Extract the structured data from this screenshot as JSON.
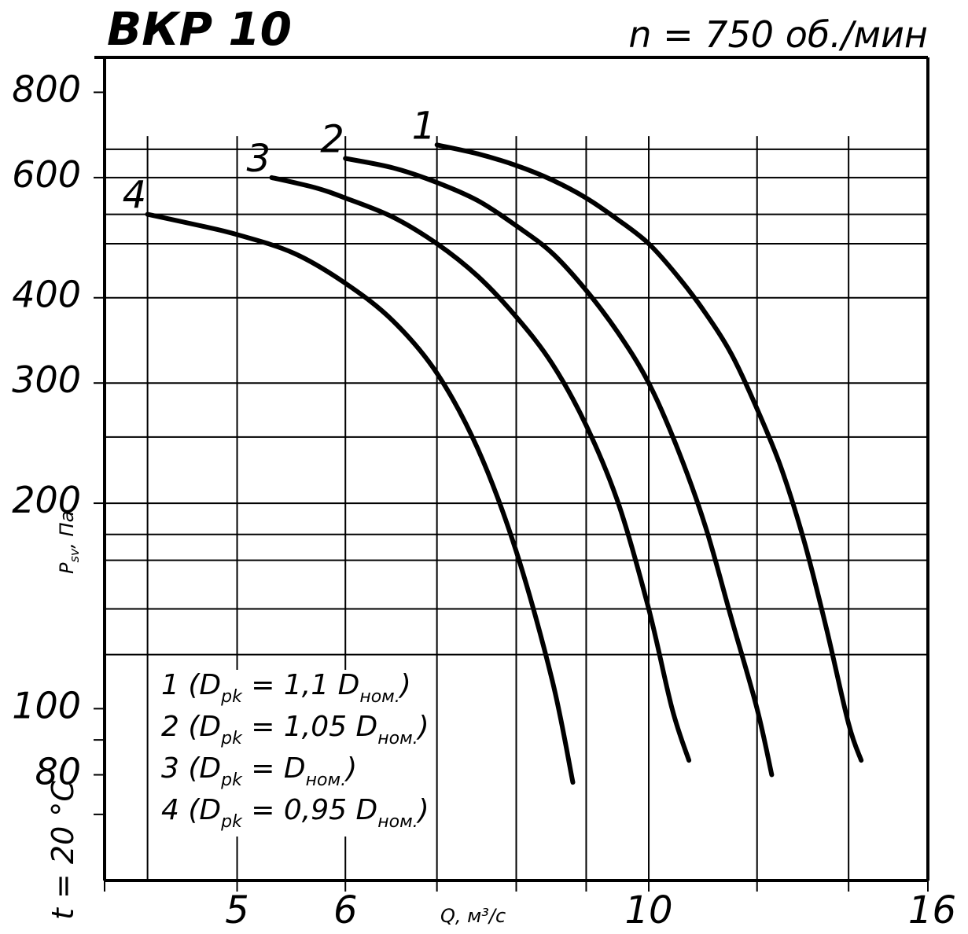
{
  "chart_data": {
    "type": "line",
    "title": "ВКР 10",
    "subtitle": "n = 750 об./мин",
    "xlabel": "Q, м³/с",
    "ylabel": "P_sv, Па",
    "condition": "t = 20 °C",
    "x_scale": "log",
    "y_scale": "log",
    "xlim": [
      4,
      16
    ],
    "ylim": [
      56,
      900
    ],
    "x_ticks": [
      4,
      5,
      6,
      7,
      8,
      9,
      10,
      12,
      14,
      16
    ],
    "x_tick_labels": [
      {
        "value": 5,
        "label": "5"
      },
      {
        "value": 6,
        "label": "6"
      },
      {
        "value": 10,
        "label": "10"
      },
      {
        "value": 16,
        "label": "16"
      }
    ],
    "y_tick_labels": [
      {
        "value": 800,
        "label": "800"
      },
      {
        "value": 600,
        "label": "600"
      },
      {
        "value": 400,
        "label": "400"
      },
      {
        "value": 300,
        "label": "300"
      },
      {
        "value": 200,
        "label": "200"
      },
      {
        "value": 100,
        "label": "100"
      },
      {
        "value": 80,
        "label": "80"
      }
    ],
    "y_minor_ticks": [
      90,
      70
    ],
    "h_gridlines": [
      660,
      600,
      530,
      480,
      400,
      300,
      250,
      200,
      180,
      165,
      140,
      120
    ],
    "v_gridlines": [
      4.3,
      5,
      6,
      7,
      8,
      9,
      10,
      12,
      14
    ],
    "grid": true,
    "legend_position": "bottom-left",
    "legend": [
      {
        "num": "1",
        "text": " (D",
        "sub": "pk",
        "mid": " = 1,1 D",
        "sub2": "ном.",
        "end": ")"
      },
      {
        "num": "2",
        "text": " (D",
        "sub": "pk",
        "mid": " = 1,05 D",
        "sub2": "ном.",
        "end": ")"
      },
      {
        "num": "3",
        "text": " (D",
        "sub": "pk",
        "mid": " = D",
        "sub2": "ном.",
        "end": ")"
      },
      {
        "num": "4",
        "text": " (D",
        "sub": "pk",
        "mid": " = 0,95 D",
        "sub2": "ном.",
        "end": ")"
      }
    ],
    "series": [
      {
        "name": "1",
        "x": [
          7.0,
          7.5,
          8.0,
          8.5,
          9.0,
          9.5,
          10.0,
          10.5,
          11.0,
          11.5,
          12.0,
          12.5,
          13.0,
          13.5,
          14.0,
          14.3
        ],
        "y": [
          670,
          650,
          625,
          595,
          560,
          520,
          480,
          430,
          380,
          330,
          275,
          225,
          175,
          130,
          95,
          84
        ]
      },
      {
        "name": "2",
        "x": [
          6.0,
          6.5,
          7.0,
          7.5,
          8.0,
          8.5,
          9.0,
          9.5,
          10.0,
          10.5,
          11.0,
          11.5,
          12.0,
          12.3
        ],
        "y": [
          640,
          620,
          590,
          555,
          510,
          465,
          410,
          355,
          300,
          240,
          185,
          135,
          100,
          80
        ]
      },
      {
        "name": "3",
        "x": [
          5.3,
          5.7,
          6.0,
          6.5,
          7.0,
          7.5,
          8.0,
          8.5,
          9.0,
          9.5,
          10.0,
          10.4,
          10.7
        ],
        "y": [
          600,
          580,
          560,
          525,
          480,
          430,
          375,
          320,
          260,
          200,
          140,
          100,
          84
        ]
      },
      {
        "name": "4",
        "x": [
          4.3,
          4.7,
          5.0,
          5.5,
          6.0,
          6.5,
          7.0,
          7.5,
          8.0,
          8.5,
          8.8
        ],
        "y": [
          530,
          510,
          495,
          465,
          420,
          370,
          310,
          240,
          170,
          110,
          78
        ]
      }
    ]
  }
}
